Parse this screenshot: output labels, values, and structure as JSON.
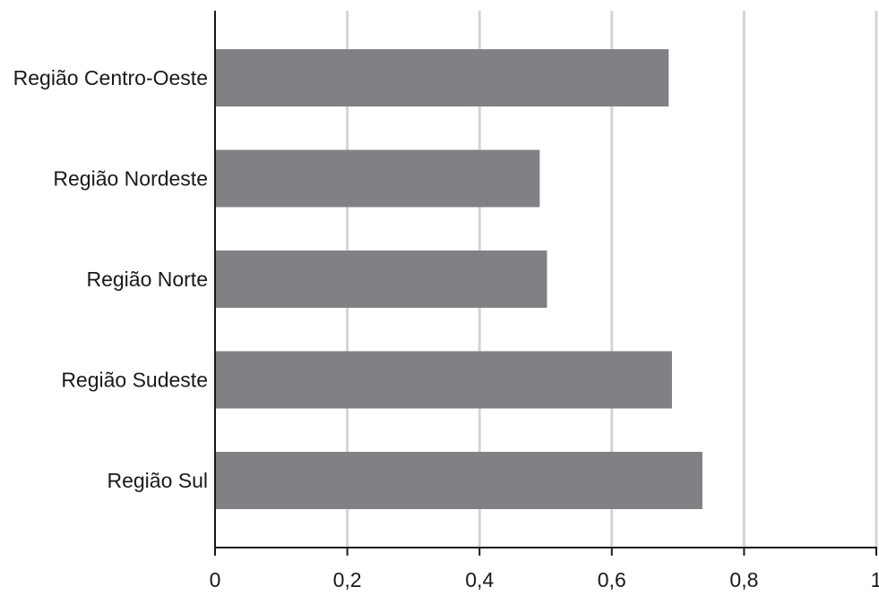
{
  "chart_data": {
    "type": "bar",
    "orientation": "horizontal",
    "categories": [
      "Região Centro-Oeste",
      "Região Nordeste",
      "Região Norte",
      "Região Sudeste",
      "Região Sul"
    ],
    "values": [
      0.686,
      0.491,
      0.502,
      0.691,
      0.737
    ],
    "xlim": [
      0,
      1
    ],
    "x_ticks": [
      "0",
      "0,2",
      "0,4",
      "0,6",
      "0,8",
      "1"
    ],
    "title": "",
    "xlabel": "",
    "ylabel": "",
    "grid": "vertical",
    "bar_color": "#808184",
    "grid_color": "#d4d4d4",
    "axis_color": "#1a1a1a"
  }
}
